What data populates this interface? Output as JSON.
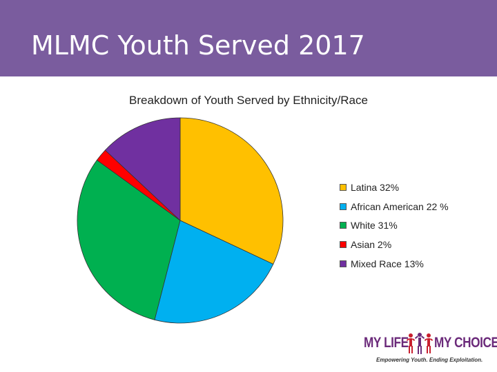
{
  "slide": {
    "title": "MLMC Youth Served 2017"
  },
  "colors": {
    "title_bar": "#7a5c9e",
    "logo_purple": "#6b2a7a",
    "logo_red": "#c8202f"
  },
  "chart_data": {
    "type": "pie",
    "title": "Breakdown of Youth Served by Ethnicity/Race",
    "legend_position": "right",
    "slices": [
      {
        "label": "Latina 32%",
        "value": 32,
        "color": "#ffc000"
      },
      {
        "label": "African American 22 %",
        "value": 22,
        "color": "#00b0f0"
      },
      {
        "label": "White 31%",
        "value": 31,
        "color": "#00b050"
      },
      {
        "label": "Asian 2%",
        "value": 2,
        "color": "#ff0000"
      },
      {
        "label": "Mixed Race 13%",
        "value": 13,
        "color": "#7030a0"
      }
    ]
  },
  "logo": {
    "left_text": "MY LIFE",
    "right_text": "MY CHOICE",
    "tagline": "Empowering Youth. Ending Exploitation."
  }
}
